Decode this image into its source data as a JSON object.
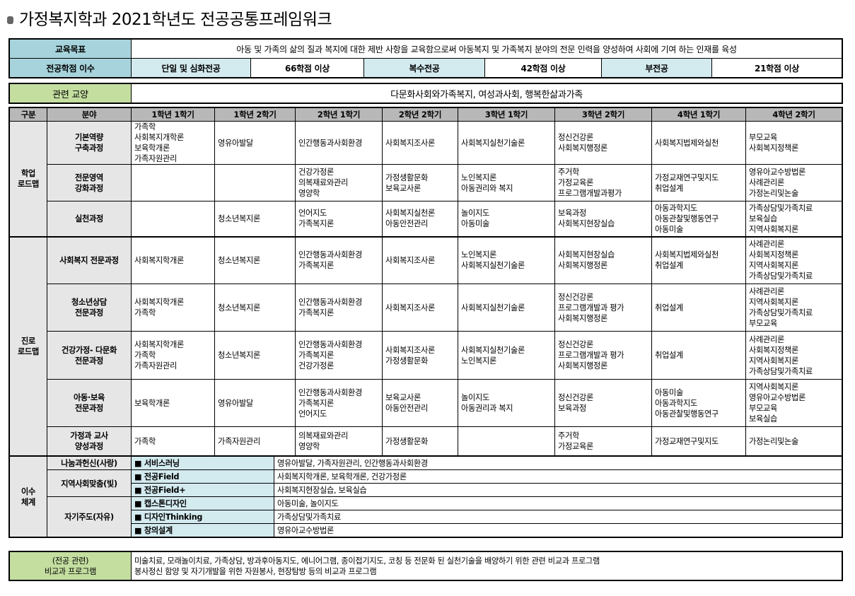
{
  "title": "가정복지학과 2021학년도 전공공통프레임워크",
  "goal": {
    "label": "교육목표",
    "text": "아동 및 가족의 삶의 질과 복지에 대한 제반 사항을 교육함으로써 아동복지 및 가족복지 분야의 전문 인력을 양성하여 사회에 기여 하는 인재를 육성"
  },
  "credits": {
    "label": "전공학점 이수",
    "items": [
      {
        "type": "단일 및 심화전공",
        "value": "66학점 이상"
      },
      {
        "type": "복수전공",
        "value": "42학점 이상"
      },
      {
        "type": "부전공",
        "value": "21학점 이상"
      }
    ]
  },
  "related": {
    "label": "관련 교양",
    "text": "다문화사회와가족복지, 여성과사회, 행복한삶과가족"
  },
  "roadmap": {
    "headers": [
      "구분",
      "분야",
      "1학년 1학기",
      "1학년 2학기",
      "2학년 1학기",
      "2학년 2학기",
      "3학년 1학기",
      "3학년 2학기",
      "4학년 1학기",
      "4학년 2학기"
    ],
    "groups": [
      {
        "label": "학업\n로드맵",
        "rows": [
          {
            "field": "기본역량\n구축과정",
            "cells": [
              [
                "가족학",
                "사회복지개학론",
                "보육학개론",
                "가족자원관리"
              ],
              [
                "영유아발달"
              ],
              [
                "인간행동과사회환경"
              ],
              [
                "사회복지조사론"
              ],
              [
                "사회복지실천기술론"
              ],
              [
                "정신건강론",
                "사회복지행정론"
              ],
              [
                "사회복지법제와실천"
              ],
              [
                "부모교육",
                "사회복지정책론"
              ]
            ]
          },
          {
            "field": "전문영역\n강화과정",
            "cells": [
              [],
              [],
              [
                "건강가정론",
                "의복재료와관리",
                "영양학"
              ],
              [
                "가정생활문화",
                "보육교사론"
              ],
              [
                "노인복지론",
                "아동권리와 복지"
              ],
              [
                "주거학",
                "가정교육론",
                "프로그램개발과평가"
              ],
              [
                "가정교재연구및지도",
                "취업설계"
              ],
              [
                "영유아교수방법론",
                "사례관리론",
                "가정논리및논술"
              ]
            ]
          },
          {
            "field": "실천과정",
            "cells": [
              [],
              [
                "청소년복지론"
              ],
              [
                "언어지도",
                "가족복지론"
              ],
              [
                "사회복지실천론",
                "아동안전관리"
              ],
              [
                "놀이지도",
                "아동미술"
              ],
              [
                "보육과정",
                "사회복지현장실습"
              ],
              [
                "아동과학지도",
                "아동관찰및행동연구",
                "아동미술"
              ],
              [
                "가족상담및가족치료",
                "보육실습",
                "지역사회복지론"
              ]
            ]
          }
        ]
      },
      {
        "label": "진로\n로드맵",
        "rows": [
          {
            "field": "사회복지 전문과정",
            "cells": [
              [
                "사회복지학개론"
              ],
              [
                "청소년복지론"
              ],
              [
                "인간행동과사회환경",
                "가족복지론"
              ],
              [
                "사회복지조사론"
              ],
              [
                "노인복지론",
                "사회복지실천기술론"
              ],
              [
                "사회복지현장실습",
                "사회복지행정론"
              ],
              [
                "사회복지법제와실천",
                "취업설계"
              ],
              [
                "사례관리론",
                "사회복지정책론",
                "지역사회복지론",
                "가족상담및가족치료"
              ]
            ]
          },
          {
            "field": "청소년상담\n전문과정",
            "cells": [
              [
                "사회복지학개론",
                "가족학"
              ],
              [
                "청소년복지론"
              ],
              [
                "인간행동과사회환경",
                "가족복지론"
              ],
              [
                "사회복지조사론"
              ],
              [
                "사회복지실천기술론"
              ],
              [
                "정신건강론",
                "프로그램개발과 평가",
                "사회복지행정론"
              ],
              [
                "취업설계"
              ],
              [
                "사례관리론",
                "지역사회복지론",
                "가족상담및가족치료",
                "부모교육"
              ]
            ]
          },
          {
            "field": "건강가정- 다문화\n전문과정",
            "cells": [
              [
                "사회복지학개론",
                "가족학",
                "가족자원관리"
              ],
              [
                "청소년복지론"
              ],
              [
                "인간행동과사회환경",
                "가족복지론",
                "건강가정론"
              ],
              [
                "사회복지조사론",
                "가정생활문화"
              ],
              [
                "사회복지실천기술론",
                "노인복지론"
              ],
              [
                "정신건강론",
                "프로그램개발과 평가",
                "사회복지행정론"
              ],
              [
                "취업설계"
              ],
              [
                "사례관리론",
                "사회복지정책론",
                "지역사회복지론",
                "가족상담및가족치료"
              ]
            ]
          },
          {
            "field": "아동·보육\n전문과정",
            "cells": [
              [
                "보육학개론"
              ],
              [
                "영유아발달"
              ],
              [
                "인간행동과사회환경",
                "가족복지론",
                "언어지도"
              ],
              [
                "보육교사론",
                "아동안전관리"
              ],
              [
                "놀이지도",
                "아동권리과 복지"
              ],
              [
                "정신건강론",
                "보육과정"
              ],
              [
                "아동미술",
                "아동과학지도",
                "아동관찰및행동연구"
              ],
              [
                "지역사회복지론",
                "영유아교수방법론",
                "부모교육",
                "보육실습"
              ]
            ]
          },
          {
            "field": "가정과 교사\n양성과정",
            "cells": [
              [
                "가족학"
              ],
              [
                "가족자원관리"
              ],
              [
                "의복재료와관리",
                "영양학"
              ],
              [
                "가정생활문화"
              ],
              [],
              [
                "주거학",
                "가정교육론"
              ],
              [
                "가정교재연구및지도"
              ],
              [
                "가정논리및논술"
              ]
            ]
          }
        ]
      }
    ]
  },
  "system": {
    "label": "이수\n체계",
    "categories": [
      {
        "name": "나눔과헌신(사랑)",
        "items": [
          {
            "program": "■ 서비스러닝",
            "courses": "영유아발달, 가족자원관리, 인간행동과사회환경"
          }
        ]
      },
      {
        "name": "지역사회맞춤(빛)",
        "items": [
          {
            "program": "■ 전공Field",
            "courses": "사회복지학개론, 보육학개론, 건강가정론"
          },
          {
            "program": "■ 전공Field+",
            "courses": "사회복지현장실습, 보육실습"
          }
        ]
      },
      {
        "name": "자기주도(자유)",
        "items": [
          {
            "program": "■ 캡스톤디자인",
            "courses": "아동미술, 놀이지도"
          },
          {
            "program": "■ 디자인Thinking",
            "courses": "가족상담및가족치료"
          },
          {
            "program": "■ 창의설계",
            "courses": "영유아교수방법론"
          }
        ]
      }
    ]
  },
  "extra": {
    "label": "(전공 관련)\n비교과 프로그램",
    "text": "미술치료, 모래놀이치료, 가족상담, 방과후아동지도, 에니어그램, 종이접기지도, 코칭 등 전문화 된 실천기술을 배양하기 위한 관련 비교과 프로그램\n봉사정신 함양 및 자기개발을 위한 자원봉사, 현장탐방 등의 비교과 프로그램"
  },
  "colors": {
    "header_blue": "#a7d4dc",
    "light_blue": "#d3eaef",
    "green": "#c4dea0",
    "gray": "#b8b8b8"
  }
}
